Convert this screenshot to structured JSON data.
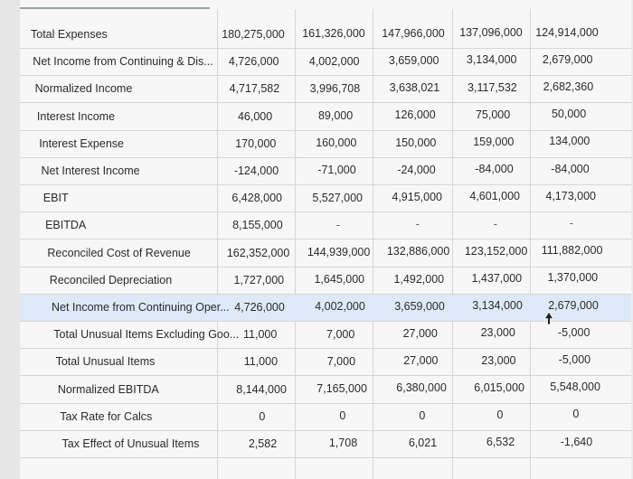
{
  "table": {
    "rows": [
      {
        "label": "Total Expenses",
        "values": [
          "180,275,000",
          "161,326,000",
          "147,966,000",
          "137,096,000",
          "124,914,000"
        ]
      },
      {
        "label": "Net Income from Continuing & Dis...",
        "values": [
          "4,726,000",
          "4,002,000",
          "3,659,000",
          "3,134,000",
          "2,679,000"
        ]
      },
      {
        "label": "Normalized Income",
        "values": [
          "4,717,582",
          "3,996,708",
          "3,638,021",
          "3,117,532",
          "2,682,360"
        ]
      },
      {
        "label": "Interest Income",
        "values": [
          "46,000",
          "89,000",
          "126,000",
          "75,000",
          "50,000"
        ]
      },
      {
        "label": "Interest Expense",
        "values": [
          "170,000",
          "160,000",
          "150,000",
          "159,000",
          "134,000"
        ]
      },
      {
        "label": "Net Interest Income",
        "values": [
          "-124,000",
          "-71,000",
          "-24,000",
          "-84,000",
          "-84,000"
        ]
      },
      {
        "label": "EBIT",
        "values": [
          "6,428,000",
          "5,527,000",
          "4,915,000",
          "4,601,000",
          "4,173,000"
        ]
      },
      {
        "label": "EBITDA",
        "values": [
          "8,155,000",
          "-",
          "-",
          "-",
          "-"
        ]
      },
      {
        "label": "Reconciled Cost of Revenue",
        "values": [
          "162,352,000",
          "144,939,000",
          "132,886,000",
          "123,152,000",
          "111,882,000"
        ]
      },
      {
        "label": "Reconciled Depreciation",
        "values": [
          "1,727,000",
          "1,645,000",
          "1,492,000",
          "1,437,000",
          "1,370,000"
        ]
      },
      {
        "label": "Net Income from Continuing Oper...",
        "values": [
          "4,726,000",
          "4,002,000",
          "3,659,000",
          "3,134,000",
          "2,679,000"
        ],
        "highlight": true
      },
      {
        "label": "Total Unusual Items Excluding Goo...",
        "values": [
          "11,000",
          "7,000",
          "27,000",
          "23,000",
          "-5,000"
        ]
      },
      {
        "label": "Total Unusual Items",
        "values": [
          "11,000",
          "7,000",
          "27,000",
          "23,000",
          "-5,000"
        ]
      },
      {
        "label": "Normalized EBITDA",
        "values": [
          "8,144,000",
          "7,165,000",
          "6,380,000",
          "6,015,000",
          "5,548,000"
        ]
      },
      {
        "label": "Tax Rate for Calcs",
        "values": [
          "0",
          "0",
          "0",
          "0",
          "0"
        ]
      },
      {
        "label": "Tax Effect of Unusual Items",
        "values": [
          "2,582",
          "1,708",
          "6,021",
          "6,532",
          "-1,640"
        ]
      }
    ]
  },
  "colors": {
    "highlight_row": "#dde9f6",
    "grid_line": "#d6d6d6",
    "text": "#2a2a2a"
  },
  "icons": {
    "cursor": "mouse-pointer-icon"
  }
}
